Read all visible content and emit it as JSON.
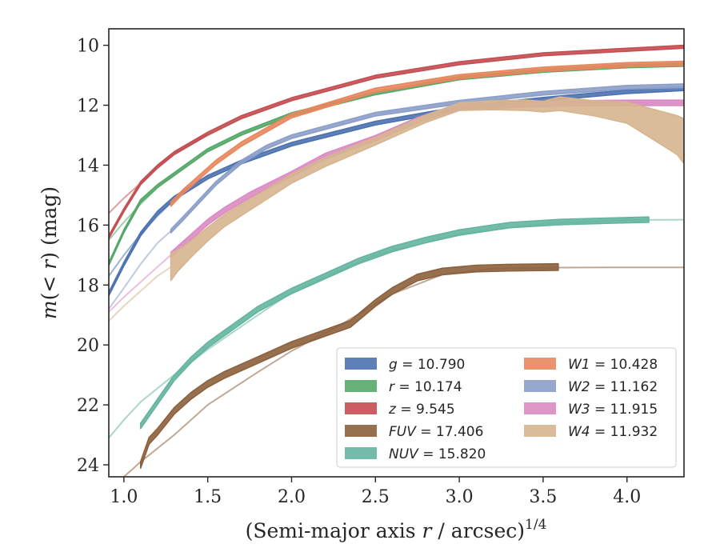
{
  "chart_data": {
    "type": "line",
    "xlabel": "(Semi-major axis r / arcsec)",
    "xlabel_parts": {
      "pre": "(Semi-major axis ",
      "var": "r",
      "post": " / arcsec)",
      "sup": "1/4"
    },
    "ylabel": "m(< r) (mag)",
    "ylabel_parts": {
      "var": "m",
      "mid": "(< ",
      "var2": "r",
      "post": ") (mag)"
    },
    "xlim": [
      0.91,
      4.34
    ],
    "ylim": [
      24.4,
      9.45
    ],
    "y_inverted": true,
    "xticks": [
      1.0,
      1.5,
      2.0,
      2.5,
      3.0,
      3.5,
      4.0
    ],
    "xtick_labels": [
      "1.0",
      "1.5",
      "2.0",
      "2.5",
      "3.0",
      "3.5",
      "4.0"
    ],
    "yticks": [
      10,
      12,
      14,
      16,
      18,
      20,
      22,
      24
    ],
    "ytick_labels": [
      "10",
      "12",
      "14",
      "16",
      "18",
      "20",
      "22",
      "24"
    ],
    "grid": false,
    "legend_position": "lower-right",
    "series": [
      {
        "name": "g",
        "value": "10.790",
        "color": "#4c72b0",
        "x": [
          0.91,
          1.0,
          1.1,
          1.2,
          1.3,
          1.5,
          1.7,
          2.0,
          2.5,
          3.0,
          3.5,
          4.0,
          4.34
        ],
        "y": [
          18.3,
          17.3,
          16.3,
          15.6,
          15.1,
          14.4,
          13.9,
          13.3,
          12.6,
          12.1,
          11.8,
          11.55,
          11.45
        ],
        "width": 0.12
      },
      {
        "name": "r",
        "value": "10.174",
        "color": "#55a868",
        "x": [
          0.91,
          1.0,
          1.1,
          1.2,
          1.3,
          1.5,
          1.7,
          2.0,
          2.5,
          3.0,
          3.5,
          4.0,
          4.34
        ],
        "y": [
          17.3,
          16.2,
          15.2,
          14.7,
          14.3,
          13.5,
          12.95,
          12.3,
          11.6,
          11.1,
          10.85,
          10.7,
          10.65
        ],
        "width": 0.1
      },
      {
        "name": "z",
        "value": "9.545",
        "color": "#c44e52",
        "x": [
          0.91,
          1.0,
          1.1,
          1.2,
          1.3,
          1.5,
          1.7,
          2.0,
          2.5,
          3.0,
          3.5,
          4.0,
          4.34
        ],
        "y": [
          16.4,
          15.5,
          14.6,
          14.05,
          13.6,
          12.95,
          12.4,
          11.8,
          11.05,
          10.6,
          10.3,
          10.15,
          10.05
        ],
        "width": 0.1
      },
      {
        "name": "FUV",
        "value": "17.406",
        "color": "#8c613c",
        "x": [
          1.1,
          1.15,
          1.2,
          1.3,
          1.4,
          1.5,
          1.6,
          1.8,
          2.0,
          2.2,
          2.35,
          2.5,
          2.6,
          2.75,
          2.9,
          3.1,
          3.3,
          3.59
        ],
        "y": [
          24.0,
          23.2,
          22.9,
          22.2,
          21.7,
          21.3,
          21.0,
          20.5,
          20.0,
          19.6,
          19.3,
          18.6,
          18.2,
          17.75,
          17.55,
          17.45,
          17.42,
          17.4
        ],
        "width": 0.22
      },
      {
        "name": "NUV",
        "value": "15.820",
        "color": "#64b5a0",
        "x": [
          1.1,
          1.2,
          1.3,
          1.4,
          1.5,
          1.6,
          1.8,
          2.0,
          2.2,
          2.4,
          2.6,
          2.8,
          3.0,
          3.3,
          3.6,
          3.9,
          4.13
        ],
        "y": [
          22.7,
          21.9,
          21.1,
          20.5,
          20.0,
          19.6,
          18.8,
          18.2,
          17.7,
          17.2,
          16.8,
          16.5,
          16.25,
          16.0,
          15.9,
          15.85,
          15.82
        ],
        "width": 0.18
      },
      {
        "name": "W1",
        "value": "10.428",
        "color": "#e8875e",
        "x": [
          1.28,
          1.35,
          1.45,
          1.55,
          1.7,
          2.0,
          2.5,
          3.0,
          3.5,
          4.0,
          4.34
        ],
        "y": [
          15.3,
          14.9,
          14.4,
          13.9,
          13.3,
          12.35,
          11.5,
          11.05,
          10.8,
          10.65,
          10.6
        ],
        "width": 0.14
      },
      {
        "name": "W2",
        "value": "11.162",
        "color": "#8c9fc9",
        "x": [
          1.28,
          1.35,
          1.45,
          1.55,
          1.7,
          1.85,
          2.0,
          2.5,
          3.0,
          3.5,
          4.0,
          4.34
        ],
        "y": [
          16.2,
          15.8,
          15.2,
          14.6,
          13.9,
          13.4,
          13.05,
          12.3,
          11.9,
          11.6,
          11.4,
          11.35
        ],
        "width": 0.12
      },
      {
        "name": "W3",
        "value": "11.915",
        "color": "#da8bc3",
        "x": [
          1.28,
          1.4,
          1.5,
          1.6,
          1.75,
          2.0,
          2.2,
          2.5,
          2.75,
          3.0,
          3.5,
          4.0,
          4.34
        ],
        "y": [
          17.0,
          16.4,
          15.9,
          15.5,
          15.0,
          14.3,
          13.7,
          13.1,
          12.5,
          12.05,
          11.95,
          11.92,
          11.92
        ],
        "width": 0.18
      },
      {
        "name": "W4",
        "value": "11.932",
        "color": "#d6b58f",
        "x": [
          1.28,
          1.32,
          1.4,
          1.5,
          1.6,
          1.8,
          2.0,
          2.2,
          2.5,
          2.8,
          3.0,
          3.2,
          3.4,
          3.5,
          3.6,
          3.8,
          4.0,
          4.1,
          4.2,
          4.3,
          4.34
        ],
        "y": [
          17.4,
          17.2,
          16.8,
          16.3,
          15.85,
          15.15,
          14.45,
          13.9,
          13.2,
          12.45,
          12.05,
          12.0,
          12.0,
          12.05,
          11.95,
          12.1,
          12.25,
          12.5,
          12.75,
          13.0,
          13.2
        ],
        "width": [
          0.9,
          0.7,
          0.55,
          0.45,
          0.4,
          0.35,
          0.3,
          0.3,
          0.25,
          0.25,
          0.25,
          0.3,
          0.35,
          0.35,
          0.45,
          0.5,
          0.7,
          0.9,
          1.1,
          1.3,
          1.5
        ]
      }
    ],
    "faint_curves": [
      {
        "name": "z-extension",
        "color": "#c44e52",
        "x": [
          0.91,
          1.0,
          1.1,
          1.2,
          1.3,
          1.5
        ],
        "y": [
          15.6,
          15.1,
          14.6,
          14.05,
          13.6,
          12.95
        ]
      },
      {
        "name": "r-extension",
        "color": "#55a868",
        "x": [
          0.91,
          1.0,
          1.1,
          1.2,
          1.3
        ],
        "y": [
          16.5,
          15.9,
          15.3,
          14.75,
          14.3
        ]
      },
      {
        "name": "g-extension",
        "color": "#4c72b0",
        "x": [
          0.91,
          1.0,
          1.1,
          1.2,
          1.3
        ],
        "y": [
          17.7,
          17.0,
          16.3,
          15.7,
          15.15
        ]
      },
      {
        "name": "W2-extension",
        "color": "#8c9fc9",
        "x": [
          0.91,
          1.0,
          1.1,
          1.2,
          1.28
        ],
        "y": [
          18.8,
          18.1,
          17.3,
          16.6,
          16.2
        ]
      },
      {
        "name": "W3-extension",
        "color": "#da8bc3",
        "x": [
          0.91,
          1.0,
          1.1,
          1.2,
          1.28
        ],
        "y": [
          18.9,
          18.4,
          17.9,
          17.4,
          17.0
        ]
      },
      {
        "name": "W4-extension",
        "color": "#d6b58f",
        "x": [
          0.91,
          1.0,
          1.1,
          1.2,
          1.28
        ],
        "y": [
          19.2,
          18.7,
          18.2,
          17.7,
          17.4
        ]
      },
      {
        "name": "W4-tail",
        "color": "#da8bc3",
        "x": [
          3.6,
          4.0,
          4.34
        ],
        "y": [
          11.92,
          11.92,
          11.92
        ]
      },
      {
        "name": "NUV-extension",
        "color": "#64b5a0",
        "x": [
          0.91,
          1.0,
          1.1,
          1.3,
          1.5,
          1.8,
          2.0,
          2.5,
          3.0,
          3.5,
          4.0,
          4.34
        ],
        "y": [
          23.1,
          22.5,
          21.9,
          21.0,
          20.15,
          19.0,
          18.25,
          17.0,
          16.3,
          15.95,
          15.83,
          15.82
        ]
      },
      {
        "name": "FUV-extension",
        "color": "#8c613c",
        "x": [
          1.0,
          1.1,
          1.3,
          1.5,
          1.8,
          2.0,
          2.3,
          2.6,
          2.9,
          3.2,
          3.6,
          4.0,
          4.34
        ],
        "y": [
          24.4,
          23.9,
          23.0,
          22.0,
          20.9,
          20.2,
          19.3,
          18.3,
          17.65,
          17.45,
          17.42,
          17.41,
          17.41
        ]
      }
    ]
  }
}
